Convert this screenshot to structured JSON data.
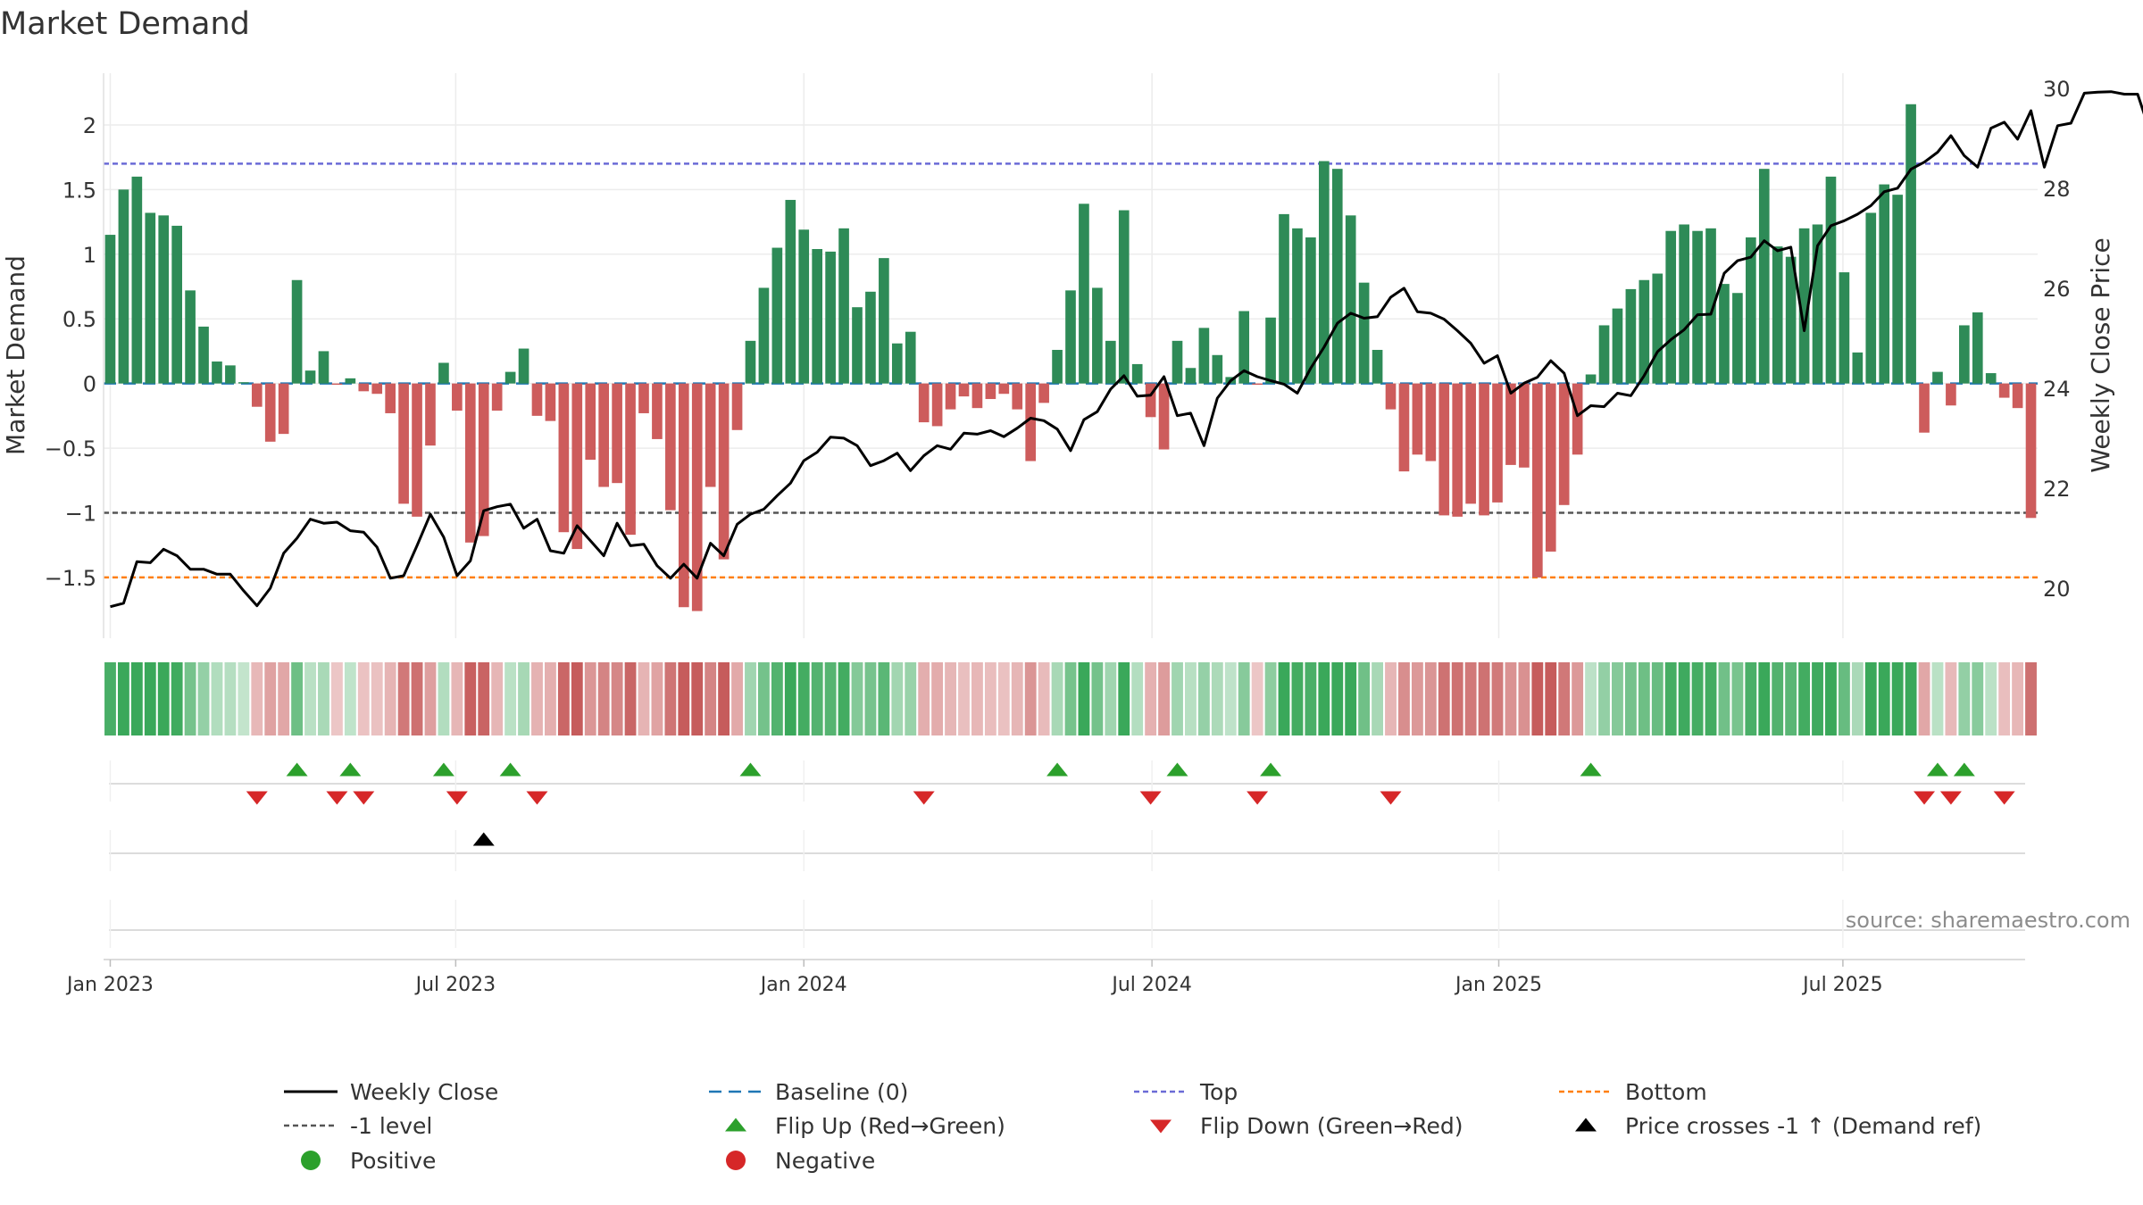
{
  "chart_data": {
    "type": "bar",
    "title": "Market Demand",
    "ylabel": "Market Demand",
    "y2label": "Weekly Close Price",
    "ylim": [
      -1.97,
      2.4
    ],
    "y2lim": [
      19,
      30.3
    ],
    "yticks": [
      -1.5,
      -1,
      -0.5,
      0,
      0.5,
      1,
      1.5,
      2
    ],
    "ytick_labels": [
      "−1.5",
      "−1",
      "−0.5",
      "0",
      "0.5",
      "1",
      "1.5",
      "2"
    ],
    "y2ticks": [
      20,
      22,
      24,
      26,
      28,
      30
    ],
    "y2tick_labels": [
      "20",
      "22",
      "24",
      "26",
      "28",
      "30"
    ],
    "xtick_labels": [
      "Jan 2023",
      "Jul 2023",
      "Jan 2024",
      "Jul 2024",
      "Jan 2025",
      "Jul 2025"
    ],
    "xtick_weeks": [
      0.5,
      26.4,
      52.5,
      78.6,
      104.6,
      130.4
    ],
    "top_level": 1.7,
    "bottom_level": -1.5,
    "minus_one_level": -1,
    "baseline": 0,
    "source": "source: sharemaestro.com",
    "series": [
      {
        "name": "Market Demand",
        "values": [
          1.15,
          1.5,
          1.6,
          1.32,
          1.3,
          1.22,
          0.72,
          0.44,
          0.17,
          0.14,
          0.01,
          -0.18,
          -0.45,
          -0.39,
          0.8,
          0.1,
          0.25,
          -0.01,
          0.04,
          -0.06,
          -0.08,
          -0.23,
          -0.93,
          -1.03,
          -0.48,
          0.16,
          -0.21,
          -1.23,
          -1.18,
          -0.21,
          0.09,
          0.27,
          -0.25,
          -0.29,
          -1.15,
          -1.28,
          -0.59,
          -0.8,
          -0.77,
          -1.17,
          -0.23,
          -0.43,
          -0.98,
          -1.73,
          -1.76,
          -0.8,
          -1.36,
          -0.36,
          0.33,
          0.74,
          1.05,
          1.42,
          1.19,
          1.04,
          1.02,
          1.2,
          0.59,
          0.71,
          0.97,
          0.31,
          0.4,
          -0.3,
          -0.33,
          -0.2,
          -0.1,
          -0.19,
          -0.12,
          -0.08,
          -0.2,
          -0.6,
          -0.15,
          0.26,
          0.72,
          1.39,
          0.74,
          0.33,
          1.34,
          0.15,
          -0.26,
          -0.51,
          0.33,
          0.12,
          0.43,
          0.22,
          0.05,
          0.56,
          -0.01,
          0.51,
          1.31,
          1.2,
          1.13,
          1.72,
          1.66,
          1.3,
          0.78,
          0.26,
          -0.2,
          -0.68,
          -0.55,
          -0.6,
          -1.02,
          -1.03,
          -0.93,
          -1.02,
          -0.92,
          -0.63,
          -0.65,
          -1.5,
          -1.3,
          -0.94,
          -0.55,
          0.07,
          0.45,
          0.58,
          0.73,
          0.8,
          0.85,
          1.18,
          1.23,
          1.18,
          1.2,
          0.77,
          0.7,
          1.13,
          1.66,
          1.06,
          0.98,
          1.2,
          1.23,
          1.6,
          0.86,
          0.24,
          1.32,
          1.54,
          1.46,
          2.16,
          -0.38,
          0.09,
          -0.17,
          0.45,
          0.55,
          0.08,
          -0.11,
          -0.19,
          -1.04
        ]
      },
      {
        "name": "Weekly Close",
        "values": [
          19.63,
          19.7,
          20.53,
          20.51,
          20.78,
          20.65,
          20.38,
          20.38,
          20.28,
          20.28,
          19.95,
          19.65,
          20.0,
          20.7,
          21.0,
          21.38,
          21.3,
          21.32,
          21.15,
          21.12,
          20.82,
          20.2,
          20.25,
          20.85,
          21.48,
          21.02,
          20.25,
          20.55,
          21.55,
          21.63,
          21.68,
          21.2,
          21.38,
          20.75,
          20.7,
          21.25,
          20.95,
          20.65,
          21.3,
          20.85,
          20.88,
          20.45,
          20.2,
          20.48,
          20.2,
          20.9,
          20.65,
          21.28,
          21.48,
          21.58,
          21.85,
          22.1,
          22.55,
          22.72,
          23.02,
          23.0,
          22.85,
          22.45,
          22.55,
          22.7,
          22.35,
          22.65,
          22.85,
          22.78,
          23.1,
          23.08,
          23.15,
          23.03,
          23.2,
          23.4,
          23.35,
          23.18,
          22.75,
          23.37,
          23.53,
          23.98,
          24.25,
          23.84,
          23.86,
          24.23,
          23.45,
          23.5,
          22.85,
          23.8,
          24.15,
          24.35,
          24.23,
          24.15,
          24.08,
          23.9,
          24.4,
          24.82,
          25.3,
          25.5,
          25.4,
          25.43,
          25.82,
          26.0,
          25.53,
          25.5,
          25.38,
          25.15,
          24.9,
          24.5,
          24.65,
          23.9,
          24.1,
          24.22,
          24.55,
          24.3,
          23.45,
          23.65,
          23.63,
          23.9,
          23.85,
          24.25,
          24.73,
          24.97,
          25.17,
          25.47,
          25.48,
          26.3,
          26.55,
          26.62,
          26.95,
          26.75,
          26.82,
          25.15,
          26.85,
          27.25,
          27.35,
          27.48,
          27.65,
          27.93,
          28.0,
          28.38,
          28.52,
          28.72,
          29.05,
          28.65,
          28.42,
          29.2,
          29.32,
          28.98,
          29.55,
          28.42,
          29.25,
          29.3,
          29.9,
          29.92,
          29.93,
          29.88,
          29.88,
          29.07
        ]
      }
    ],
    "legend": [
      {
        "label": "Weekly Close",
        "marker": "line",
        "color": "#000000"
      },
      {
        "label": "Baseline (0)",
        "marker": "dash",
        "color": "#1f77b4"
      },
      {
        "label": "Top",
        "marker": "dot",
        "color": "#6b6bd6"
      },
      {
        "label": "Bottom",
        "marker": "dot",
        "color": "#ff7f0e"
      },
      {
        "label": "-1 level",
        "marker": "dot",
        "color": "#555555"
      },
      {
        "label": "Flip Up (Red→Green)",
        "marker": "tri-up",
        "color": "#2ca02c"
      },
      {
        "label": "Flip Down (Green→Red)",
        "marker": "tri-down",
        "color": "#d62728"
      },
      {
        "label": "Price crosses -1 ↑ (Demand ref)",
        "marker": "tri-up",
        "color": "#000000"
      },
      {
        "label": "Positive",
        "marker": "circle",
        "color": "#2ca02c"
      },
      {
        "label": "Negative",
        "marker": "circle",
        "color": "#d62728"
      }
    ],
    "colors": {
      "positive": "#2e8b57",
      "negative": "#cd5c5c",
      "close": "#000000",
      "baseline": "#1f77b4",
      "top": "#6b6bd6",
      "bottom": "#ff7f0e",
      "minus_one": "#555555",
      "flip_up": "#2ca02c",
      "flip_down": "#d62728",
      "cross": "#000000"
    }
  }
}
